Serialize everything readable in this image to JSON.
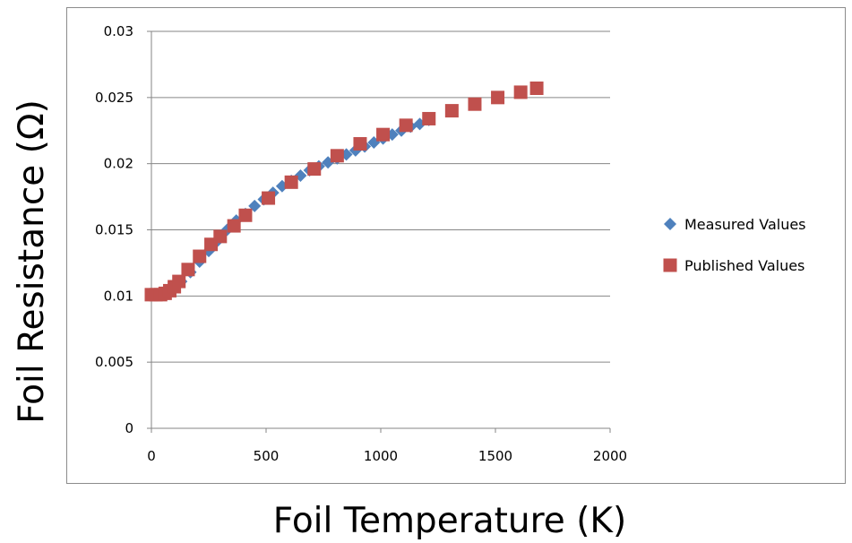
{
  "chart_data": {
    "type": "scatter",
    "xlabel": "Foil Temperature (K)",
    "ylabel": "Foil Resistance (Ω)",
    "xlim": [
      0,
      2000
    ],
    "ylim": [
      0,
      0.03
    ],
    "x_ticks": [
      "0",
      "500",
      "1000",
      "1500",
      "2000"
    ],
    "y_ticks": [
      "0",
      "0.005",
      "0.01",
      "0.015",
      "0.02",
      "0.025",
      "0.03"
    ],
    "grid": "horizontal",
    "legend_position": "right",
    "series": [
      {
        "name": "Measured Values",
        "marker": "diamond",
        "color": "#4f81bd",
        "x": [
          10,
          40,
          70,
          100,
          130,
          170,
          210,
          250,
          290,
          330,
          370,
          410,
          450,
          490,
          530,
          570,
          610,
          650,
          690,
          730,
          770,
          810,
          850,
          890,
          930,
          970,
          1010,
          1050,
          1090,
          1130,
          1170,
          1210
        ],
        "y": [
          0.0101,
          0.0102,
          0.0103,
          0.0106,
          0.0111,
          0.0118,
          0.0126,
          0.0134,
          0.0142,
          0.015,
          0.0157,
          0.0162,
          0.0168,
          0.0173,
          0.0178,
          0.0183,
          0.0187,
          0.0191,
          0.0195,
          0.0198,
          0.0201,
          0.0204,
          0.0207,
          0.021,
          0.0213,
          0.0216,
          0.0219,
          0.0222,
          0.0225,
          0.0228,
          0.023,
          0.0233
        ]
      },
      {
        "name": "Published Values",
        "marker": "square",
        "color": "#c0504d",
        "x": [
          0,
          20,
          40,
          60,
          80,
          100,
          120,
          160,
          210,
          260,
          300,
          360,
          410,
          510,
          610,
          710,
          810,
          910,
          1010,
          1110,
          1210,
          1310,
          1410,
          1510,
          1610,
          1680
        ],
        "y": [
          0.0101,
          0.0101,
          0.0101,
          0.0102,
          0.0104,
          0.0107,
          0.0111,
          0.012,
          0.013,
          0.0139,
          0.0145,
          0.0153,
          0.0161,
          0.0174,
          0.0186,
          0.0196,
          0.0206,
          0.0215,
          0.0222,
          0.0229,
          0.0234,
          0.024,
          0.0245,
          0.025,
          0.0254,
          0.0257
        ]
      }
    ]
  }
}
